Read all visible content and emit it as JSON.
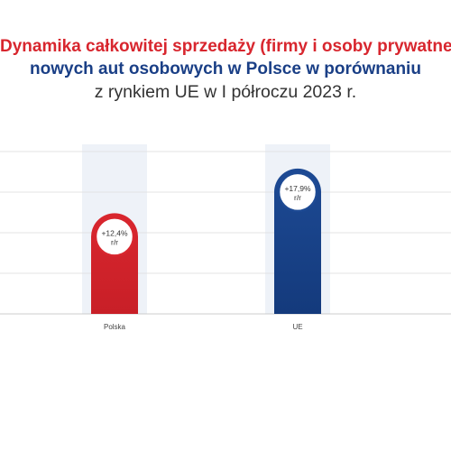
{
  "title": {
    "line1": "Dynamika całkowitej sprzedaży (firmy i osoby prywatne)",
    "line2": "nowych aut osobowych w Polsce w porównaniu",
    "line3": "z rynkiem UE w I półroczu 2023 r."
  },
  "colors": {
    "poland": "#d8262e",
    "eu": "#1d4a94",
    "eu_dark": "#143a7c",
    "column_bg": "#eef2f8",
    "grid": "#e3e3e3"
  },
  "chart_data": {
    "type": "bar",
    "categories": [
      "Polska",
      "UE"
    ],
    "values": [
      12.4,
      17.9
    ],
    "value_labels": [
      "+12,4%",
      "+17,9%"
    ],
    "value_unit": "r/r",
    "ylim": [
      0,
      20
    ],
    "grid": true,
    "legend": "none"
  }
}
